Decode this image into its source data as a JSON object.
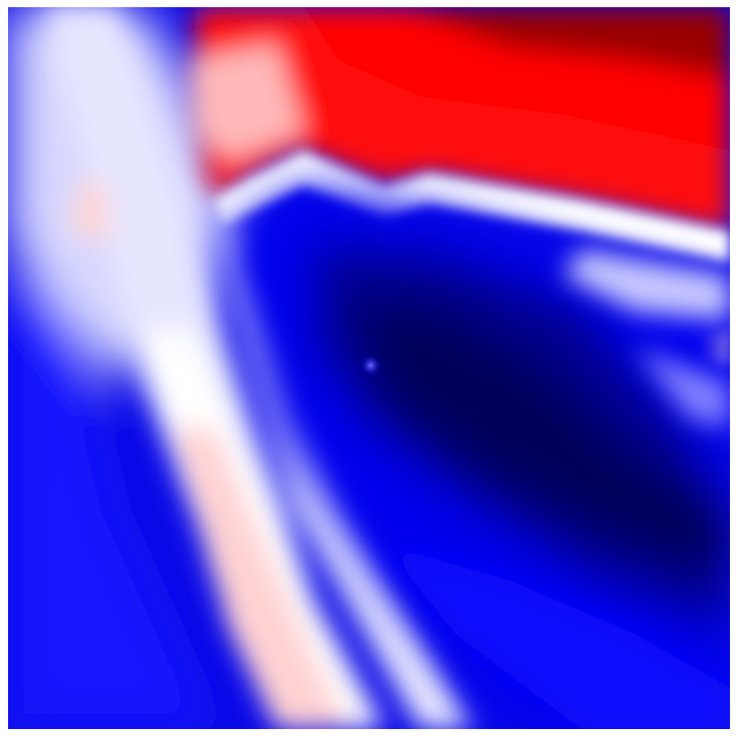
{
  "image": {
    "kind": "diverging-colormap-field",
    "colormap": [
      "#00004d",
      "#0000ff",
      "#ffffff",
      "#ff0000",
      "#800000"
    ],
    "colors": {
      "background": "#ffffff",
      "deep_blue": "#00004d",
      "blue": "#0000ff",
      "white": "#ffffff",
      "red": "#ff0000",
      "deep_red": "#800000"
    },
    "axes_visible": false,
    "colorbar_visible": false,
    "title": ""
  }
}
